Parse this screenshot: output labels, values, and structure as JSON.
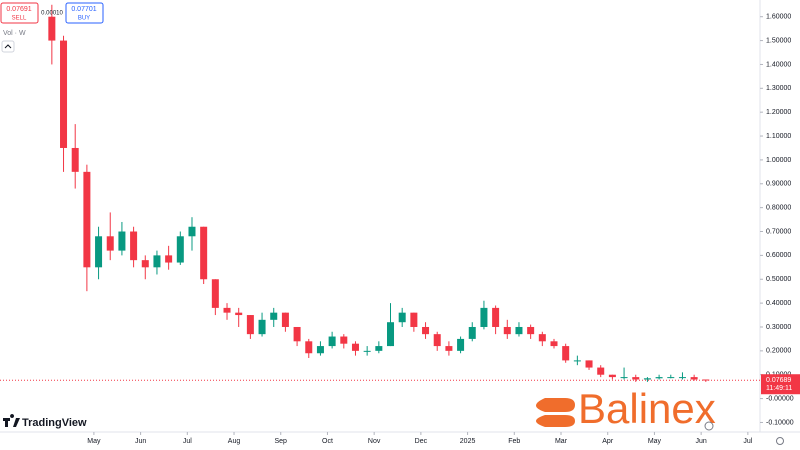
{
  "chart_data": {
    "type": "candlestick",
    "order_panel": {
      "sell_price": "0.07691",
      "sell_label": "SELL",
      "spread": "0.00010",
      "buy_price": "0.07701",
      "buy_label": "BUY"
    },
    "indicator": "Vol · W",
    "watermark": "TradingView",
    "brand": "Balinex",
    "countdown": "11:49:11",
    "last_price": {
      "value": 0.07689,
      "label": "0.07689"
    },
    "up_color": "#089981",
    "down_color": "#f23645",
    "x": [
      -0.9,
      -0.65,
      -0.4,
      -0.15,
      0.1,
      0.35,
      0.6,
      0.85,
      1.1,
      1.35,
      1.6,
      1.85,
      2.1,
      2.35,
      2.6,
      2.85,
      3.1,
      3.35,
      3.6,
      3.85,
      4.1,
      4.35,
      4.6,
      4.85,
      5.1,
      5.35,
      5.6,
      5.85,
      6.1,
      6.35,
      6.6,
      6.85,
      7.1,
      7.35,
      7.6,
      7.85,
      8.1,
      8.35,
      8.6,
      8.85,
      9.1,
      9.35,
      9.6,
      9.85,
      10.1,
      10.35,
      10.6,
      10.85,
      11.1,
      11.35,
      11.6,
      11.85,
      12.1,
      12.35,
      12.6,
      12.85,
      13.1
    ],
    "open": [
      1.6,
      1.5,
      1.05,
      0.95,
      0.55,
      0.68,
      0.62,
      0.7,
      0.58,
      0.55,
      0.6,
      0.57,
      0.68,
      0.72,
      0.5,
      0.38,
      0.36,
      0.35,
      0.27,
      0.33,
      0.36,
      0.3,
      0.24,
      0.19,
      0.22,
      0.26,
      0.23,
      0.2,
      0.2,
      0.22,
      0.32,
      0.36,
      0.3,
      0.27,
      0.22,
      0.2,
      0.25,
      0.3,
      0.38,
      0.3,
      0.27,
      0.3,
      0.27,
      0.24,
      0.22,
      0.16,
      0.16,
      0.13,
      0.1,
      0.09,
      0.09,
      0.08,
      0.085,
      0.09,
      0.09,
      0.09,
      0.08
    ],
    "high": [
      1.65,
      1.52,
      1.15,
      0.98,
      0.72,
      0.78,
      0.74,
      0.72,
      0.6,
      0.62,
      0.64,
      0.7,
      0.76,
      0.72,
      0.5,
      0.4,
      0.38,
      0.35,
      0.36,
      0.38,
      0.36,
      0.3,
      0.25,
      0.24,
      0.28,
      0.27,
      0.24,
      0.22,
      0.24,
      0.4,
      0.38,
      0.36,
      0.32,
      0.28,
      0.24,
      0.26,
      0.32,
      0.41,
      0.39,
      0.33,
      0.32,
      0.31,
      0.28,
      0.25,
      0.23,
      0.18,
      0.16,
      0.14,
      0.1,
      0.13,
      0.1,
      0.09,
      0.1,
      0.1,
      0.11,
      0.1,
      0.08
    ],
    "low": [
      1.4,
      0.95,
      0.88,
      0.45,
      0.5,
      0.58,
      0.6,
      0.55,
      0.5,
      0.52,
      0.54,
      0.56,
      0.62,
      0.48,
      0.35,
      0.33,
      0.3,
      0.25,
      0.26,
      0.3,
      0.28,
      0.22,
      0.17,
      0.18,
      0.21,
      0.21,
      0.18,
      0.18,
      0.19,
      0.22,
      0.3,
      0.28,
      0.25,
      0.2,
      0.18,
      0.19,
      0.24,
      0.29,
      0.27,
      0.25,
      0.26,
      0.25,
      0.22,
      0.21,
      0.15,
      0.14,
      0.12,
      0.09,
      0.08,
      0.08,
      0.07,
      0.07,
      0.08,
      0.085,
      0.08,
      0.075,
      0.07
    ],
    "close": [
      1.5,
      1.05,
      0.95,
      0.55,
      0.68,
      0.62,
      0.7,
      0.58,
      0.55,
      0.6,
      0.57,
      0.68,
      0.72,
      0.5,
      0.38,
      0.36,
      0.35,
      0.27,
      0.33,
      0.36,
      0.3,
      0.24,
      0.19,
      0.22,
      0.26,
      0.23,
      0.2,
      0.2,
      0.22,
      0.32,
      0.36,
      0.3,
      0.27,
      0.22,
      0.2,
      0.25,
      0.3,
      0.38,
      0.3,
      0.27,
      0.3,
      0.27,
      0.24,
      0.22,
      0.16,
      0.16,
      0.13,
      0.1,
      0.09,
      0.09,
      0.08,
      0.085,
      0.09,
      0.09,
      0.09,
      0.08,
      0.077
    ],
    "xlim": [
      -2.01,
      14.26
    ],
    "xticks": [
      {
        "value": 0,
        "label": "May"
      },
      {
        "value": 1,
        "label": "Jun"
      },
      {
        "value": 2,
        "label": "Jul"
      },
      {
        "value": 3,
        "label": "Aug"
      },
      {
        "value": 4,
        "label": "Sep"
      },
      {
        "value": 5,
        "label": "Oct"
      },
      {
        "value": 6,
        "label": "Nov"
      },
      {
        "value": 7,
        "label": "Dec"
      },
      {
        "value": 8,
        "label": "2025"
      },
      {
        "value": 9,
        "label": "Feb"
      },
      {
        "value": 10,
        "label": "Mar"
      },
      {
        "value": 11,
        "label": "Apr"
      },
      {
        "value": 12,
        "label": "May"
      },
      {
        "value": 13,
        "label": "Jun"
      },
      {
        "value": 14,
        "label": "Jul"
      }
    ],
    "ylim": [
      -0.14,
      1.67
    ],
    "yticks": [
      {
        "value": -0.1,
        "label": "-0.10000"
      },
      {
        "value": 0,
        "label": "-0.00000"
      },
      {
        "value": 0.1,
        "label": "0.10000"
      },
      {
        "value": 0.2,
        "label": "0.20000"
      },
      {
        "value": 0.3,
        "label": "0.30000"
      },
      {
        "value": 0.4,
        "label": "0.40000"
      },
      {
        "value": 0.5,
        "label": "0.50000"
      },
      {
        "value": 0.6,
        "label": "0.60000"
      },
      {
        "value": 0.7,
        "label": "0.70000"
      },
      {
        "value": 0.8,
        "label": "0.80000"
      },
      {
        "value": 0.9,
        "label": "0.90000"
      },
      {
        "value": 1.0,
        "label": "1.00000"
      },
      {
        "value": 1.1,
        "label": "1.10000"
      },
      {
        "value": 1.2,
        "label": "1.20000"
      },
      {
        "value": 1.3,
        "label": "1.30000"
      },
      {
        "value": 1.4,
        "label": "1.40000"
      },
      {
        "value": 1.5,
        "label": "1.50000"
      },
      {
        "value": 1.6,
        "label": "1.60000"
      }
    ]
  }
}
